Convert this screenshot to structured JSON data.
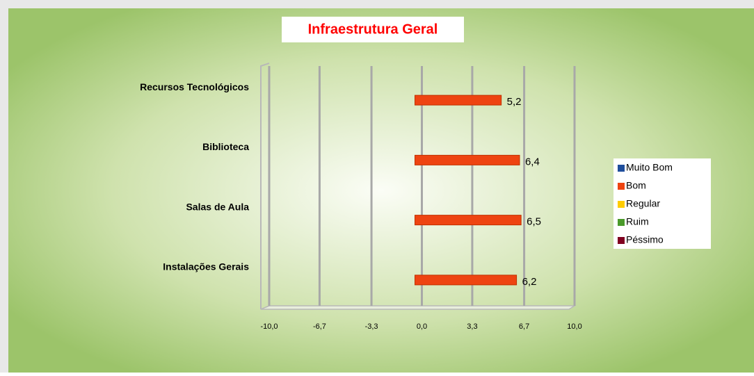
{
  "chart_data": {
    "type": "bar",
    "orientation": "horizontal",
    "title": "Infraestrutura Geral",
    "categories": [
      "Recursos Tecnológicos",
      "Biblioteca",
      "Salas de Aula",
      "Instalações Gerais"
    ],
    "series": [
      {
        "name": "Muito Bom",
        "color": "#1f4e9c",
        "values": [
          null,
          null,
          null,
          null
        ]
      },
      {
        "name": "Bom",
        "color": "#ee4411",
        "values": [
          5.2,
          6.4,
          6.5,
          6.2
        ],
        "value_labels": [
          "5,2",
          "6,4",
          "6,5",
          "6,2"
        ]
      },
      {
        "name": "Regular",
        "color": "#ffcc00",
        "values": [
          null,
          null,
          null,
          null
        ]
      },
      {
        "name": "Ruim",
        "color": "#4a9a2a",
        "values": [
          null,
          null,
          null,
          null
        ]
      },
      {
        "name": "Péssimo",
        "color": "#800020",
        "values": [
          null,
          null,
          null,
          null
        ]
      }
    ],
    "xlim": [
      -10,
      10
    ],
    "xticks": [
      {
        "value": -10,
        "label": "-10,0"
      },
      {
        "value": -6.7,
        "label": "-6,7"
      },
      {
        "value": -3.3,
        "label": "-3,3"
      },
      {
        "value": 0,
        "label": "0,0"
      },
      {
        "value": 3.3,
        "label": "3,3"
      },
      {
        "value": 6.7,
        "label": "6,7"
      },
      {
        "value": 10,
        "label": "10,0"
      }
    ],
    "grid": true,
    "legend": "right"
  }
}
